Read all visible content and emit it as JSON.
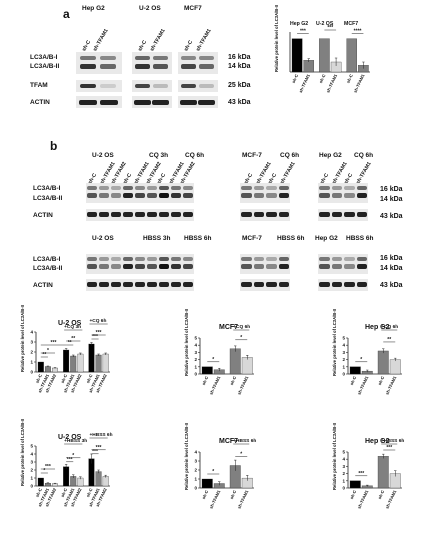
{
  "panel_a": {
    "label": "a",
    "cells": [
      "Hep G2",
      "U-2 OS",
      "MCF7"
    ],
    "lane_labels": [
      "sh-C",
      "sh-TFAM1"
    ],
    "rows": [
      "LC3A/B-I",
      "LC3A/B-II",
      "TFAM",
      "ACTIN"
    ],
    "mw": [
      "16 kDa",
      "14 kDa",
      "25 kDa",
      "43 kDa"
    ]
  },
  "panel_b": {
    "label": "b",
    "row1_titles": [
      "U-2 OS",
      "CQ 3h",
      "CQ 6h",
      "MCF-7",
      "CQ 6h",
      "Hep G2",
      "CQ 6h"
    ],
    "row2_titles": [
      "U-2 OS",
      "HBSS 3h",
      "HBSS 6h",
      "MCF-7",
      "HBSS 6h",
      "Hep G2",
      "HBSS 6h"
    ],
    "lanes_uos": [
      "sh-C",
      "sh-TFAM1",
      "sh-TFAM2",
      "sh-C",
      "sh-TFAM1",
      "sh-TFAM2",
      "sh-C",
      "sh-TFAM1",
      "sh-TFAM2"
    ],
    "lanes_4": [
      "sh-C",
      "sh-TFAM1",
      "sh-C",
      "sh-TFAM1"
    ],
    "rows": [
      "LC3A/B-I",
      "LC3A/B-II",
      "ACTIN"
    ],
    "mw": [
      "16 kDa",
      "14 kDa",
      "43 kDa"
    ]
  },
  "ylabel": "Relative protein level of LC3A/B-II",
  "chart_data": [
    {
      "type": "bar",
      "title": "",
      "group_labels": [
        "Hep G2",
        "U-2 OS",
        "MCF7"
      ],
      "categories": [
        "sh-C",
        "sh-TFAM1",
        "sh-C",
        "sh-TFAM1",
        "sh-C",
        "sh-TFAM1"
      ],
      "values": [
        1.0,
        0.35,
        1.0,
        0.3,
        1.0,
        0.2
      ],
      "errors": [
        0,
        0.05,
        0,
        0.12,
        0,
        0.1
      ],
      "colors": [
        "#000000",
        "#808080",
        "#808080",
        "#d8d8d8",
        "#808080",
        "#808080"
      ],
      "ylim": [
        0,
        1.2
      ],
      "sig": [
        "***",
        "***",
        "****"
      ]
    },
    {
      "type": "bar",
      "title": "U-2 OS",
      "categories": [
        "sh-C",
        "sh-TFAM1",
        "sh-TFAM2",
        "sh-C",
        "sh-TFAM1",
        "sh-TFAM2",
        "sh-C",
        "sh-TFAM1",
        "sh-TFAM2"
      ],
      "values": [
        1.0,
        0.55,
        0.4,
        2.2,
        1.6,
        1.8,
        2.8,
        1.7,
        1.8
      ],
      "errors": [
        0,
        0.05,
        0.05,
        0.15,
        0.1,
        0.1,
        0.15,
        0.1,
        0.1
      ],
      "colors": [
        "#000000",
        "#808080",
        "#d8d8d8",
        "#000000",
        "#808080",
        "#d8d8d8",
        "#000000",
        "#808080",
        "#d8d8d8"
      ],
      "brackets": [
        "+CQ 3h",
        "+CQ 6h"
      ],
      "sig": [
        "**",
        "*",
        "**",
        "**",
        "***",
        "***",
        "***"
      ],
      "ylim": [
        0,
        4
      ]
    },
    {
      "type": "bar",
      "title": "MCF7",
      "categories": [
        "sh-C",
        "sh-TFAM1",
        "sh-C",
        "sh-TFAM1"
      ],
      "values": [
        1.0,
        0.6,
        3.5,
        2.3
      ],
      "errors": [
        0,
        0.2,
        0.4,
        0.3
      ],
      "colors": [
        "#000000",
        "#808080",
        "#808080",
        "#d8d8d8"
      ],
      "brackets": [
        "+CQ 6h"
      ],
      "sig": [
        "*",
        "*"
      ],
      "ylim": [
        0,
        5
      ]
    },
    {
      "type": "bar",
      "title": "Hep G2",
      "categories": [
        "sh-C",
        "sh-TFAM1",
        "sh-C",
        "sh-TFAM1"
      ],
      "values": [
        1.0,
        0.4,
        3.2,
        2.0
      ],
      "errors": [
        0,
        0.15,
        0.3,
        0.2
      ],
      "colors": [
        "#000000",
        "#808080",
        "#808080",
        "#d8d8d8"
      ],
      "brackets": [
        "+CQ 6h"
      ],
      "sig": [
        "*",
        "**"
      ],
      "ylim": [
        0,
        5
      ]
    },
    {
      "type": "bar",
      "title": "U-2 OS",
      "categories": [
        "sh-C",
        "sh-TFAM1",
        "sh-TFAM2",
        "sh-C",
        "sh-TFAM1",
        "sh-TFAM2",
        "sh-C",
        "sh-TFAM1",
        "sh-TFAM2"
      ],
      "values": [
        1.0,
        0.35,
        0.3,
        2.4,
        1.2,
        1.0,
        3.4,
        1.8,
        1.2
      ],
      "errors": [
        0,
        0.05,
        0.05,
        0.3,
        0.2,
        0.15,
        0.6,
        0.2,
        0.15
      ],
      "colors": [
        "#000000",
        "#808080",
        "#d8d8d8",
        "#000000",
        "#808080",
        "#d8d8d8",
        "#000000",
        "#808080",
        "#d8d8d8"
      ],
      "brackets": [
        "+HBSS 3h",
        "+HBSS 6h"
      ],
      "sig": [
        "*",
        "***",
        "***",
        "*",
        "***",
        "***"
      ],
      "ylim": [
        0,
        5
      ]
    },
    {
      "type": "bar",
      "title": "MCF7",
      "categories": [
        "sh-C",
        "sh-TFAM1",
        "sh-C",
        "sh-TFAM1"
      ],
      "values": [
        1.0,
        0.5,
        2.5,
        1.1
      ],
      "errors": [
        0,
        0.2,
        0.6,
        0.3
      ],
      "colors": [
        "#000000",
        "#808080",
        "#808080",
        "#d8d8d8"
      ],
      "brackets": [
        "+HBSS 6h"
      ],
      "sig": [
        "*",
        "*"
      ],
      "ylim": [
        0,
        4
      ]
    },
    {
      "type": "bar",
      "title": "Hep G2",
      "categories": [
        "sh-C",
        "sh-TFAM1",
        "sh-C",
        "sh-TFAM1"
      ],
      "values": [
        1.0,
        0.3,
        4.4,
        2.0
      ],
      "errors": [
        0,
        0.1,
        0.3,
        0.4
      ],
      "colors": [
        "#000000",
        "#808080",
        "#808080",
        "#d8d8d8"
      ],
      "brackets": [
        "+HBSS 6h"
      ],
      "sig": [
        "***",
        "***"
      ],
      "ylim": [
        0,
        5
      ]
    }
  ]
}
